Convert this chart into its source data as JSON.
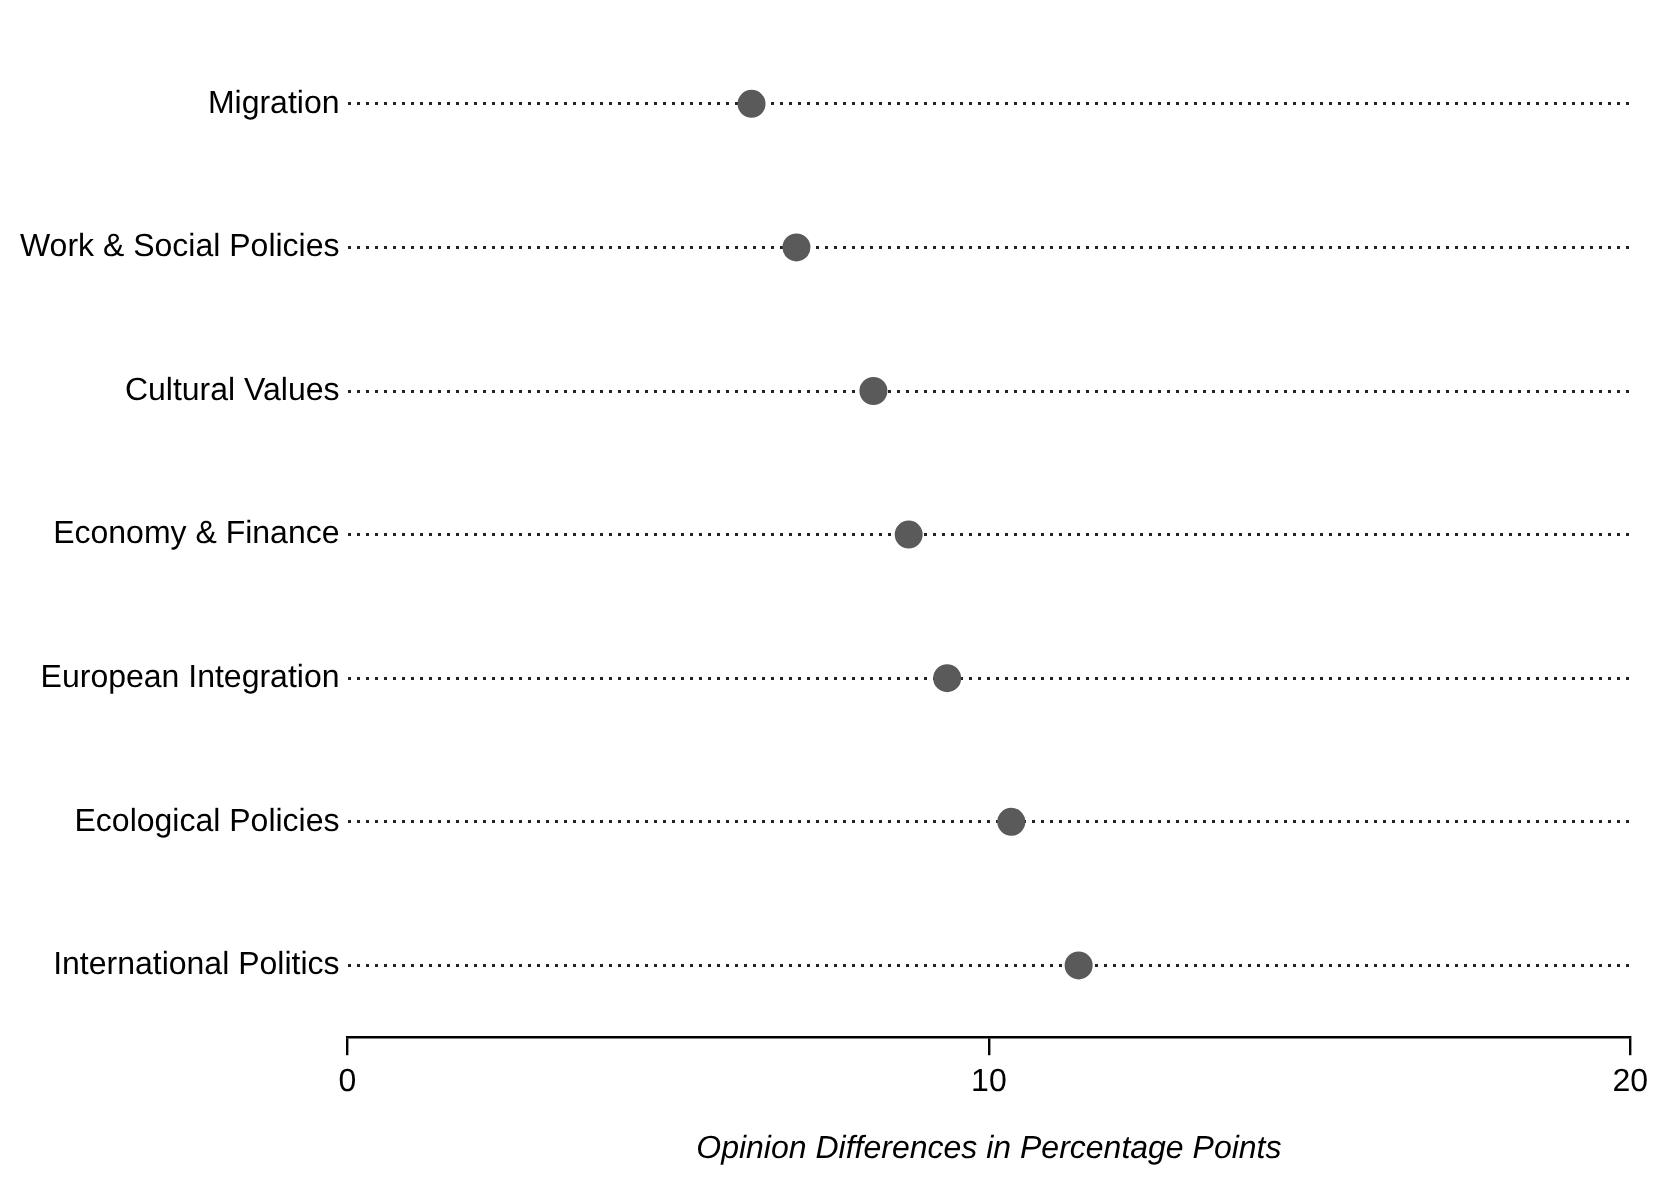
{
  "chart_data": {
    "type": "scatter",
    "orientation": "horizontal",
    "xlabel": "Opinion Differences in Percentage Points",
    "categories": [
      "Migration",
      "Work & Social Policies",
      "Cultural Values",
      "Economy & Finance",
      "European Integration",
      "Ecological Policies",
      "International Politics"
    ],
    "values": [
      6.3,
      7.0,
      8.2,
      8.75,
      9.35,
      10.35,
      11.4
    ],
    "color": "#5a5a5a",
    "marker": "circle",
    "xlim": [
      0,
      20
    ],
    "xticks": [
      0,
      10,
      20
    ],
    "grid": "y"
  }
}
